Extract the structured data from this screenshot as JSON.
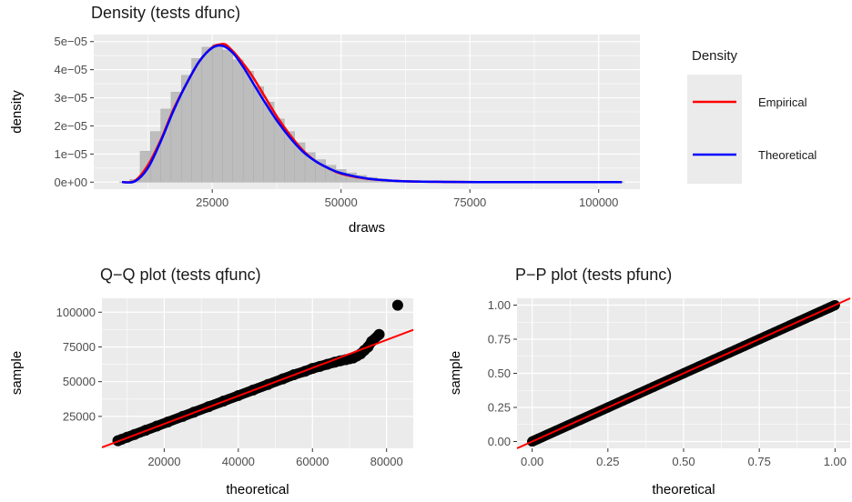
{
  "chart_data": [
    {
      "type": "area",
      "title": "Density (tests dfunc)",
      "xlabel": "draws",
      "ylabel": "density",
      "xlim": [
        2000,
        108000
      ],
      "ylim": [
        -2.5e-06,
        5.25e-05
      ],
      "x_ticks": [
        25000,
        50000,
        75000,
        100000
      ],
      "x_tick_labels": [
        "25000",
        "50000",
        "75000",
        "100000"
      ],
      "y_ticks": [
        0,
        1e-05,
        2e-05,
        3e-05,
        4e-05,
        5e-05
      ],
      "y_tick_labels": [
        "0e+00",
        "1e−05",
        "2e−05",
        "3e−05",
        "4e−05",
        "5e−05"
      ],
      "grid": true,
      "histogram": {
        "bin_width": 2000,
        "bin_starts": [
          7000,
          9000,
          11000,
          13000,
          15000,
          17000,
          19000,
          21000,
          23000,
          25000,
          27000,
          29000,
          31000,
          33000,
          35000,
          37000,
          39000,
          41000,
          43000,
          45000,
          47000,
          49000,
          51000,
          53000,
          55000,
          57000,
          59000,
          61000,
          63000,
          65000,
          67000,
          69000,
          71000
        ],
        "values": [
          0.0,
          1e-06,
          1.1e-05,
          1.8e-05,
          2.6e-05,
          3.2e-05,
          3.8e-05,
          4.4e-05,
          4.8e-05,
          4.9e-05,
          4.7e-05,
          4.35e-05,
          3.95e-05,
          3.4e-05,
          2.85e-05,
          2.25e-05,
          1.8e-05,
          1.4e-05,
          1.05e-05,
          8e-06,
          6e-06,
          4.5e-06,
          3.3e-06,
          2.4e-06,
          1.7e-06,
          1.2e-06,
          8e-07,
          5e-07,
          3e-07,
          2e-07,
          1e-07,
          5e-08,
          0.0
        ]
      },
      "series": [
        {
          "name": "Empirical",
          "color": "#ff0000",
          "x": [
            7500,
            10000,
            12500,
            15000,
            17500,
            20000,
            22500,
            25000,
            26500,
            27500,
            28500,
            30000,
            32500,
            35000,
            37500,
            40000,
            42500,
            45000,
            47500,
            50000,
            55000,
            60000,
            65000,
            70000,
            80000,
            90000,
            100000,
            104500
          ],
          "y": [
            0.0,
            5e-07,
            6e-06,
            1.5e-05,
            2.6e-05,
            3.5e-05,
            4.3e-05,
            4.8e-05,
            4.9e-05,
            4.9e-05,
            4.75e-05,
            4.45e-05,
            3.85e-05,
            3.1e-05,
            2.35e-05,
            1.7e-05,
            1.15e-05,
            7.5e-06,
            5e-06,
            3e-06,
            1.2e-06,
            5e-07,
            2e-07,
            1e-07,
            0.0,
            0.0,
            0.0,
            0.0
          ]
        },
        {
          "name": "Theoretical",
          "color": "#0000ff",
          "x": [
            7500,
            10000,
            12500,
            15000,
            17500,
            20000,
            22500,
            25000,
            27000,
            29000,
            31000,
            33000,
            35000,
            37500,
            40000,
            42500,
            45000,
            47500,
            50000,
            55000,
            60000,
            65000,
            70000,
            80000,
            90000,
            100000,
            104500
          ],
          "y": [
            0.0,
            3e-07,
            5e-06,
            1.45e-05,
            2.55e-05,
            3.5e-05,
            4.3e-05,
            4.78e-05,
            4.85e-05,
            4.6e-05,
            4.1e-05,
            3.5e-05,
            2.9e-05,
            2.2e-05,
            1.6e-05,
            1.1e-05,
            7.5e-06,
            5e-06,
            3.2e-06,
            1.3e-06,
            5e-07,
            2e-07,
            1e-07,
            0.0,
            0.0,
            0.0,
            0.0
          ]
        }
      ],
      "legend": {
        "title": "Density",
        "placement": "right",
        "entries": [
          "Empirical",
          "Theoretical"
        ]
      }
    },
    {
      "type": "scatter",
      "title": "Q−Q plot (tests qfunc)",
      "xlabel": "theoretical",
      "ylabel": "sample",
      "xlim": [
        3200,
        87200
      ],
      "ylim": [
        2000,
        110000
      ],
      "x_ticks": [
        20000,
        40000,
        60000,
        80000
      ],
      "x_tick_labels": [
        "20000",
        "40000",
        "60000",
        "80000"
      ],
      "y_ticks": [
        25000,
        50000,
        75000,
        100000
      ],
      "y_tick_labels": [
        "25000",
        "50000",
        "75000",
        "100000"
      ],
      "grid": true,
      "points": {
        "x": [
          7500,
          8500,
          10000,
          12000,
          15000,
          18000,
          21000,
          25000,
          28000,
          32000,
          36000,
          40000,
          44000,
          48000,
          52000,
          55000,
          58000,
          60000,
          62000,
          64000,
          66000,
          67500,
          69000,
          70000,
          71000,
          72000,
          73000,
          74000,
          75000,
          76000,
          78000,
          83000
        ],
        "y": [
          7500,
          8500,
          10000,
          12000,
          15000,
          18000,
          21000,
          25000,
          28000,
          32000,
          36000,
          40000,
          44000,
          48000,
          52000,
          55000,
          57500,
          59500,
          61000,
          62500,
          64000,
          65000,
          65800,
          66500,
          67000,
          68500,
          70000,
          72500,
          75000,
          79000,
          84000,
          105000
        ]
      },
      "reference_line": {
        "color": "#ff0000",
        "x": [
          3200,
          87200
        ],
        "y": [
          2700,
          87300
        ]
      }
    },
    {
      "type": "scatter",
      "title": "P−P plot (tests pfunc)",
      "xlabel": "theoretical",
      "ylabel": "sample",
      "xlim": [
        -0.05,
        1.05
      ],
      "ylim": [
        -0.05,
        1.05
      ],
      "x_ticks": [
        0,
        0.25,
        0.5,
        0.75,
        1
      ],
      "x_tick_labels": [
        "0.00",
        "0.25",
        "0.50",
        "0.75",
        "1.00"
      ],
      "y_ticks": [
        0,
        0.25,
        0.5,
        0.75,
        1
      ],
      "y_tick_labels": [
        "0.00",
        "0.25",
        "0.50",
        "0.75",
        "1.00"
      ],
      "grid": true,
      "points": {
        "x": [
          0,
          0.02,
          0.05,
          0.08,
          0.12,
          0.16,
          0.2,
          0.25,
          0.3,
          0.35,
          0.4,
          0.45,
          0.5,
          0.55,
          0.6,
          0.65,
          0.7,
          0.75,
          0.8,
          0.85,
          0.88,
          0.92,
          0.95,
          0.98,
          1.0
        ],
        "y": [
          0,
          0.02,
          0.05,
          0.08,
          0.12,
          0.16,
          0.2,
          0.25,
          0.3,
          0.35,
          0.4,
          0.45,
          0.5,
          0.55,
          0.6,
          0.65,
          0.7,
          0.75,
          0.8,
          0.85,
          0.88,
          0.92,
          0.95,
          0.98,
          1.0
        ]
      },
      "reference_line": {
        "color": "#ff0000",
        "x": [
          -0.05,
          1.05
        ],
        "y": [
          -0.05,
          1.05
        ]
      }
    }
  ]
}
